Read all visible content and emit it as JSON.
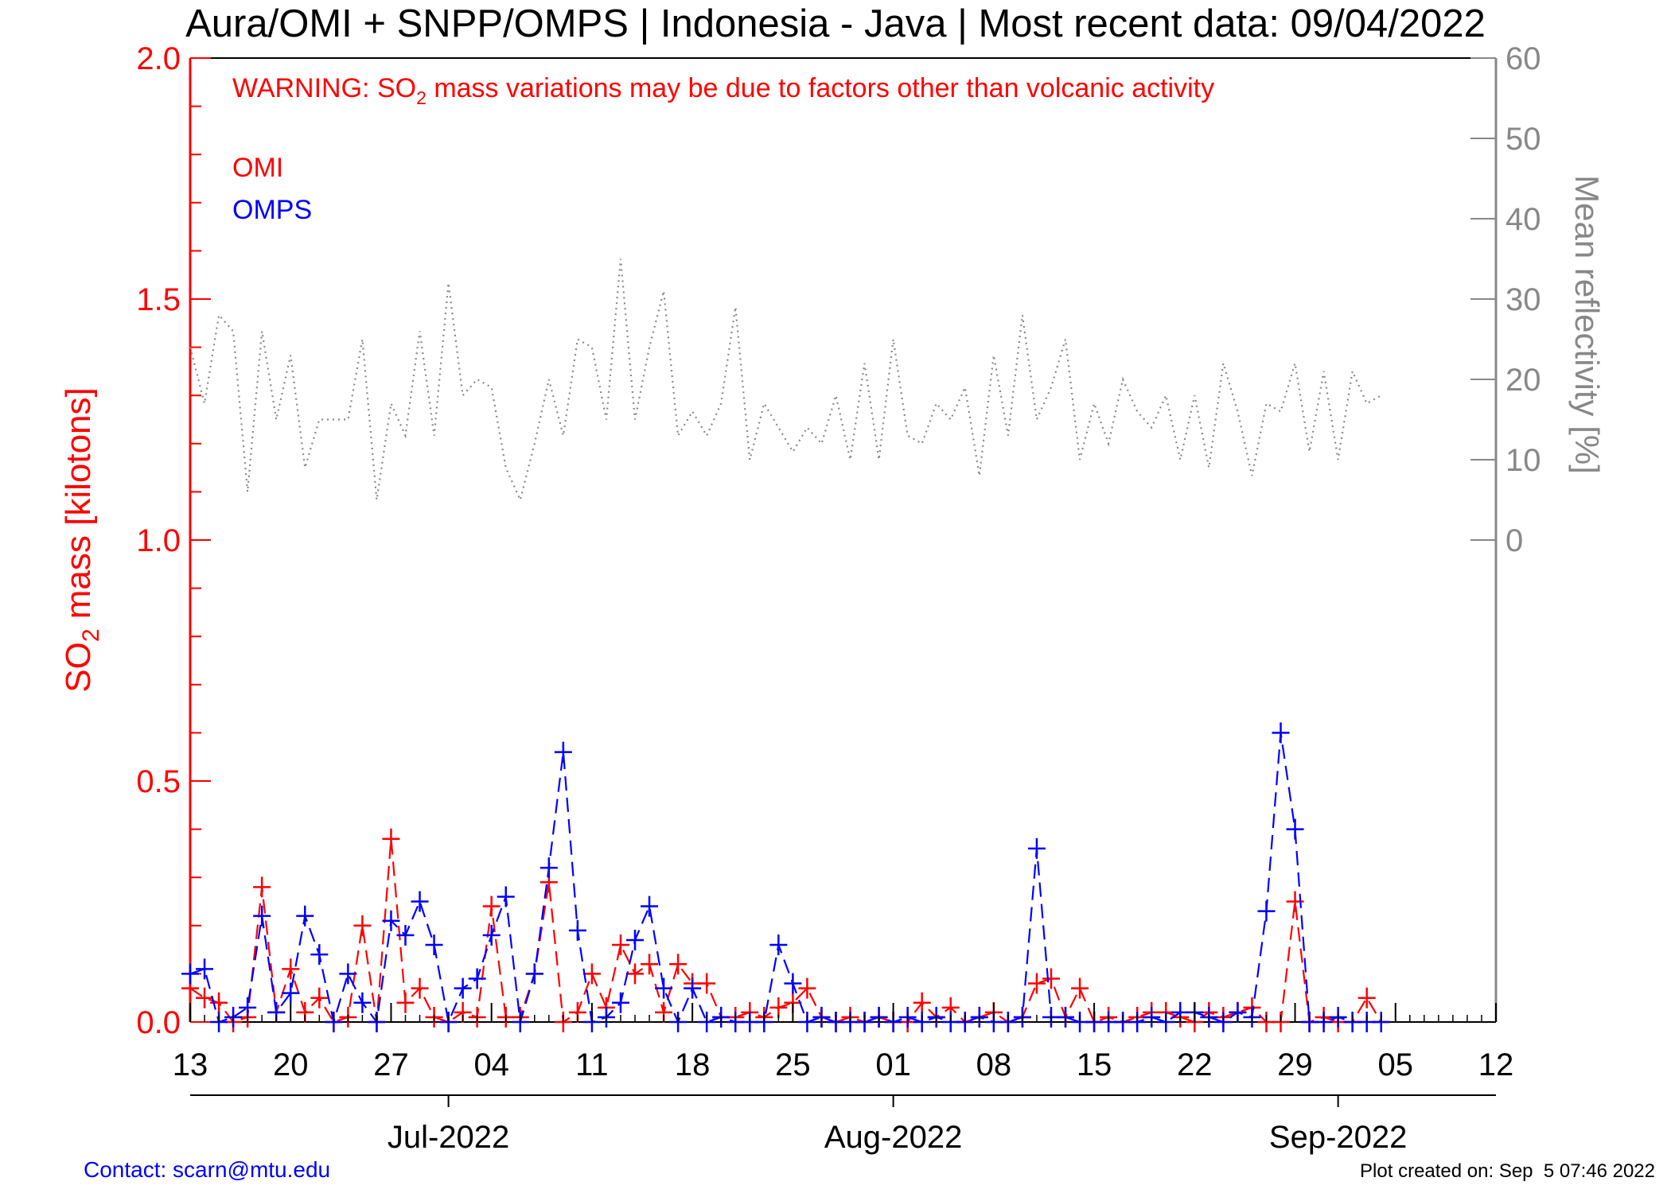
{
  "chart_data": {
    "type": "line",
    "title": "Aura/OMI + SNPP/OMPS | Indonesia - Java | Most recent data: 09/04/2022",
    "warning": {
      "prefix": "WARNING: SO",
      "sub": "2",
      "suffix": " mass variations may be due to factors other than volcanic activity"
    },
    "ylabel_left": {
      "prefix": "SO",
      "sub": "2",
      "suffix": " mass [kilotons]"
    },
    "ylabel_right": "Mean reflectivity [%]",
    "ylim_left": [
      0,
      2
    ],
    "ylim_right": [
      -60,
      60
    ],
    "xlim": [
      "2022-06-13",
      "2022-09-12"
    ],
    "left_ticks": [
      "0.0",
      "0.5",
      "1.0",
      "1.5",
      "2.0"
    ],
    "right_ticks": [
      "0",
      "10",
      "20",
      "30",
      "40",
      "50",
      "60"
    ],
    "day_ticks": [
      {
        "date": "2022-06-13",
        "label": "13"
      },
      {
        "date": "2022-06-20",
        "label": "20"
      },
      {
        "date": "2022-06-27",
        "label": "27"
      },
      {
        "date": "2022-07-04",
        "label": "04"
      },
      {
        "date": "2022-07-11",
        "label": "11"
      },
      {
        "date": "2022-07-18",
        "label": "18"
      },
      {
        "date": "2022-07-25",
        "label": "25"
      },
      {
        "date": "2022-08-01",
        "label": "01"
      },
      {
        "date": "2022-08-08",
        "label": "08"
      },
      {
        "date": "2022-08-15",
        "label": "15"
      },
      {
        "date": "2022-08-22",
        "label": "22"
      },
      {
        "date": "2022-08-29",
        "label": "29"
      },
      {
        "date": "2022-09-05",
        "label": "05"
      },
      {
        "date": "2022-09-12",
        "label": "12"
      }
    ],
    "month_ticks": [
      {
        "date": "2022-07-01",
        "label": "Jul-2022"
      },
      {
        "date": "2022-08-01",
        "label": "Aug-2022"
      },
      {
        "date": "2022-09-01",
        "label": "Sep-2022"
      }
    ],
    "series": [
      {
        "name": "OMI",
        "color": "#ff0000",
        "style": "dashed",
        "axis": "left",
        "x": [
          "2022-06-13",
          "2022-06-14",
          "2022-06-15",
          "2022-06-16",
          "2022-06-17",
          "2022-06-18",
          "2022-06-19",
          "2022-06-20",
          "2022-06-21",
          "2022-06-22",
          "2022-06-23",
          "2022-06-24",
          "2022-06-25",
          "2022-06-26",
          "2022-06-27",
          "2022-06-28",
          "2022-06-29",
          "2022-06-30",
          "2022-07-01",
          "2022-07-02",
          "2022-07-03",
          "2022-07-04",
          "2022-07-05",
          "2022-07-06",
          "2022-07-07",
          "2022-07-08",
          "2022-07-09",
          "2022-07-10",
          "2022-07-11",
          "2022-07-12",
          "2022-07-13",
          "2022-07-14",
          "2022-07-15",
          "2022-07-16",
          "2022-07-17",
          "2022-07-18",
          "2022-07-19",
          "2022-07-20",
          "2022-07-21",
          "2022-07-22",
          "2022-07-23",
          "2022-07-24",
          "2022-07-25",
          "2022-07-26",
          "2022-07-27",
          "2022-07-28",
          "2022-07-29",
          "2022-07-30",
          "2022-07-31",
          "2022-08-01",
          "2022-08-02",
          "2022-08-03",
          "2022-08-04",
          "2022-08-05",
          "2022-08-06",
          "2022-08-07",
          "2022-08-08",
          "2022-08-09",
          "2022-08-10",
          "2022-08-11",
          "2022-08-12",
          "2022-08-13",
          "2022-08-14",
          "2022-08-15",
          "2022-08-16",
          "2022-08-17",
          "2022-08-18",
          "2022-08-19",
          "2022-08-20",
          "2022-08-21",
          "2022-08-22",
          "2022-08-23",
          "2022-08-24",
          "2022-08-25",
          "2022-08-26",
          "2022-08-27",
          "2022-08-28",
          "2022-08-29",
          "2022-08-30",
          "2022-08-31",
          "2022-09-01",
          "2022-09-02",
          "2022-09-03",
          "2022-09-04"
        ],
        "values": [
          0.07,
          0.05,
          0.04,
          0.0,
          0.01,
          0.28,
          0.02,
          0.11,
          0.02,
          0.05,
          0.0,
          0.01,
          0.2,
          0.0,
          0.38,
          0.04,
          0.07,
          0.01,
          0.0,
          0.02,
          0.01,
          0.24,
          0.01,
          0.01,
          0.1,
          0.29,
          0.0,
          0.02,
          0.1,
          0.03,
          0.16,
          0.1,
          0.12,
          0.02,
          0.12,
          0.08,
          0.08,
          0.01,
          0.01,
          0.02,
          0.01,
          0.03,
          0.04,
          0.07,
          0.01,
          0.0,
          0.01,
          0.0,
          0.01,
          0.0,
          0.0,
          0.04,
          0.01,
          0.03,
          0.0,
          0.01,
          0.02,
          0.0,
          0.01,
          0.08,
          0.09,
          0.01,
          0.07,
          0.0,
          0.01,
          0.0,
          0.01,
          0.02,
          0.02,
          0.01,
          0.0,
          0.02,
          0.01,
          0.02,
          0.03,
          0.0,
          0.0,
          0.25,
          0.0,
          0.01,
          0.0,
          0.0,
          0.05,
          0.0
        ]
      },
      {
        "name": "OMPS",
        "color": "#0000ff",
        "style": "dashed",
        "axis": "left",
        "x": [
          "2022-06-13",
          "2022-06-14",
          "2022-06-15",
          "2022-06-16",
          "2022-06-17",
          "2022-06-18",
          "2022-06-19",
          "2022-06-20",
          "2022-06-21",
          "2022-06-22",
          "2022-06-23",
          "2022-06-24",
          "2022-06-25",
          "2022-06-26",
          "2022-06-27",
          "2022-06-28",
          "2022-06-29",
          "2022-06-30",
          "2022-07-01",
          "2022-07-02",
          "2022-07-03",
          "2022-07-04",
          "2022-07-05",
          "2022-07-06",
          "2022-07-07",
          "2022-07-08",
          "2022-07-09",
          "2022-07-10",
          "2022-07-11",
          "2022-07-12",
          "2022-07-13",
          "2022-07-14",
          "2022-07-15",
          "2022-07-16",
          "2022-07-17",
          "2022-07-18",
          "2022-07-19",
          "2022-07-20",
          "2022-07-21",
          "2022-07-22",
          "2022-07-23",
          "2022-07-24",
          "2022-07-25",
          "2022-07-26",
          "2022-07-27",
          "2022-07-28",
          "2022-07-29",
          "2022-07-30",
          "2022-07-31",
          "2022-08-01",
          "2022-08-02",
          "2022-08-03",
          "2022-08-04",
          "2022-08-05",
          "2022-08-06",
          "2022-08-07",
          "2022-08-08",
          "2022-08-09",
          "2022-08-10",
          "2022-08-11",
          "2022-08-12",
          "2022-08-13",
          "2022-08-14",
          "2022-08-15",
          "2022-08-16",
          "2022-08-17",
          "2022-08-18",
          "2022-08-19",
          "2022-08-20",
          "2022-08-21",
          "2022-08-22",
          "2022-08-23",
          "2022-08-24",
          "2022-08-25",
          "2022-08-26",
          "2022-08-27",
          "2022-08-28",
          "2022-08-29",
          "2022-08-30",
          "2022-08-31",
          "2022-09-01",
          "2022-09-02",
          "2022-09-03",
          "2022-09-04"
        ],
        "values": [
          0.1,
          0.11,
          0.0,
          0.01,
          0.03,
          0.22,
          0.02,
          0.06,
          0.22,
          0.14,
          0.0,
          0.1,
          0.04,
          0.0,
          0.21,
          0.18,
          0.25,
          0.16,
          0.0,
          0.07,
          0.09,
          0.18,
          0.26,
          0.0,
          0.1,
          0.32,
          0.56,
          0.19,
          0.0,
          0.01,
          0.04,
          0.17,
          0.24,
          0.07,
          0.0,
          0.07,
          0.0,
          0.01,
          0.0,
          0.0,
          0.0,
          0.16,
          0.08,
          0.0,
          0.01,
          0.0,
          0.0,
          0.0,
          0.01,
          0.0,
          0.01,
          0.0,
          0.01,
          0.0,
          0.0,
          0.01,
          0.0,
          0.0,
          0.01,
          0.36,
          0.01,
          0.01,
          0.0,
          0.0,
          0.0,
          0.0,
          0.0,
          0.01,
          0.0,
          0.02,
          0.02,
          0.01,
          0.0,
          0.02,
          0.01,
          0.23,
          0.6,
          0.4,
          0.0,
          0.0,
          0.01,
          0.0,
          0.0,
          0.0
        ]
      },
      {
        "name": "Mean reflectivity",
        "color": "#888888",
        "style": "dotted",
        "axis": "right",
        "x": [
          "2022-06-13",
          "2022-06-14",
          "2022-06-15",
          "2022-06-16",
          "2022-06-17",
          "2022-06-18",
          "2022-06-19",
          "2022-06-20",
          "2022-06-21",
          "2022-06-22",
          "2022-06-23",
          "2022-06-24",
          "2022-06-25",
          "2022-06-26",
          "2022-06-27",
          "2022-06-28",
          "2022-06-29",
          "2022-06-30",
          "2022-07-01",
          "2022-07-02",
          "2022-07-03",
          "2022-07-04",
          "2022-07-05",
          "2022-07-06",
          "2022-07-07",
          "2022-07-08",
          "2022-07-09",
          "2022-07-10",
          "2022-07-11",
          "2022-07-12",
          "2022-07-13",
          "2022-07-14",
          "2022-07-15",
          "2022-07-16",
          "2022-07-17",
          "2022-07-18",
          "2022-07-19",
          "2022-07-20",
          "2022-07-21",
          "2022-07-22",
          "2022-07-23",
          "2022-07-24",
          "2022-07-25",
          "2022-07-26",
          "2022-07-27",
          "2022-07-28",
          "2022-07-29",
          "2022-07-30",
          "2022-07-31",
          "2022-08-01",
          "2022-08-02",
          "2022-08-03",
          "2022-08-04",
          "2022-08-05",
          "2022-08-06",
          "2022-08-07",
          "2022-08-08",
          "2022-08-09",
          "2022-08-10",
          "2022-08-11",
          "2022-08-12",
          "2022-08-13",
          "2022-08-14",
          "2022-08-15",
          "2022-08-16",
          "2022-08-17",
          "2022-08-18",
          "2022-08-19",
          "2022-08-20",
          "2022-08-21",
          "2022-08-22",
          "2022-08-23",
          "2022-08-24",
          "2022-08-25",
          "2022-08-26",
          "2022-08-27",
          "2022-08-28",
          "2022-08-29",
          "2022-08-30",
          "2022-08-31",
          "2022-09-01",
          "2022-09-02",
          "2022-09-03",
          "2022-09-04"
        ],
        "values": [
          24,
          17,
          28,
          26,
          6,
          26,
          15,
          23,
          9,
          15,
          15,
          15,
          25,
          5,
          17,
          13,
          26,
          13,
          32,
          18,
          20,
          19,
          9,
          5,
          12,
          20,
          13,
          25,
          24,
          15,
          35,
          15,
          24,
          31,
          13,
          16,
          13,
          17,
          29,
          10,
          17,
          14,
          11,
          14,
          12,
          18,
          10,
          22,
          10,
          25,
          13,
          12,
          17,
          15,
          19,
          8,
          23,
          13,
          28,
          15,
          19,
          25,
          10,
          17,
          12,
          20,
          16,
          14,
          18,
          10,
          18,
          9,
          22,
          16,
          8,
          17,
          16,
          22,
          11,
          21,
          10,
          21,
          17,
          18
        ]
      }
    ],
    "grid": false,
    "legend": {
      "placement": "top-left",
      "entries": [
        {
          "label": "OMI",
          "color": "#ff0000"
        },
        {
          "label": "OMPS",
          "color": "#0000ff"
        }
      ]
    },
    "footer_left": "Contact: scarn@mtu.edu",
    "footer_right": "Plot created on: Sep  5 07:46 2022"
  }
}
